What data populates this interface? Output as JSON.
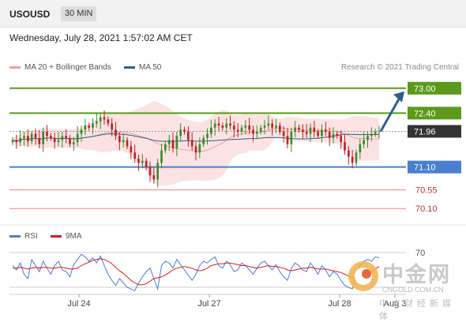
{
  "header": {
    "symbol": "USOUSD",
    "timeframe": "30 MIN"
  },
  "timestamp": "Wednesday, July 28, 2021 1:57:02 AM CET",
  "legend": [
    {
      "label": "MA 20 + Bollinger Bands",
      "color": "#f0a0a0"
    },
    {
      "label": "MA 50",
      "color": "#2b5f8f"
    }
  ],
  "copyright": "Research © 2021 Trading Central",
  "watermark": {
    "main": "中金网",
    "url": "CNGOLD.COM.CN",
    "sub": "中文财经新媒体"
  },
  "rsi_legend": [
    {
      "label": "RSI",
      "color": "#4a7fd0"
    },
    {
      "label": "9MA",
      "color": "#d42020"
    }
  ],
  "colors": {
    "resistance": "#5b9a1b",
    "support_main": "#4a7fd0",
    "support_minor": "#f08080",
    "current": "#333333",
    "candle_up": "#3a8a2a",
    "candle_down": "#c02020"
  },
  "chart_data": {
    "type": "candlestick",
    "symbol": "USOUSD",
    "timeframe": "30 MIN",
    "ylim": [
      69.8,
      73.3
    ],
    "x_ticks": [
      "Jul 24",
      "Jul 27",
      "Jul 28",
      "Aug 3"
    ],
    "levels": [
      {
        "value": 73.0,
        "label": "73.00",
        "kind": "resistance"
      },
      {
        "value": 72.4,
        "label": "72.40",
        "kind": "resistance"
      },
      {
        "value": 71.96,
        "label": "71.96",
        "kind": "current"
      },
      {
        "value": 71.1,
        "label": "71.10",
        "kind": "support_main"
      },
      {
        "value": 70.55,
        "label": "70.55",
        "kind": "support_minor"
      },
      {
        "value": 70.1,
        "label": "70.10",
        "kind": "support_minor"
      }
    ],
    "target_arrow": {
      "from": 71.96,
      "to": 73.0
    },
    "closes": [
      71.75,
      71.7,
      71.8,
      71.85,
      71.72,
      71.9,
      71.8,
      71.65,
      71.95,
      71.85,
      71.8,
      71.7,
      71.75,
      71.85,
      71.8,
      71.65,
      71.7,
      71.9,
      72.0,
      72.1,
      72.05,
      72.15,
      72.2,
      72.3,
      72.25,
      72.15,
      72.0,
      71.85,
      71.7,
      71.75,
      71.6,
      71.45,
      71.3,
      71.2,
      71.25,
      71.1,
      70.9,
      70.8,
      71.2,
      71.5,
      71.65,
      71.75,
      71.55,
      71.85,
      72.0,
      71.95,
      71.75,
      71.6,
      71.45,
      71.65,
      71.8,
      71.9,
      72.05,
      72.15,
      72.1,
      72.05,
      72.15,
      72.1,
      72.0,
      71.95,
      72.05,
      72.1,
      72.0,
      71.9,
      71.95,
      72.05,
      72.1,
      72.15,
      72.05,
      72.1,
      71.95,
      71.85,
      71.65,
      71.95,
      72.05,
      72.0,
      71.95,
      71.9,
      72.05,
      71.95,
      71.85,
      72.0,
      71.95,
      71.8,
      71.9,
      71.85,
      71.7,
      71.5,
      71.35,
      71.2,
      71.45,
      71.65,
      71.75,
      71.85,
      71.9,
      71.95,
      71.96
    ],
    "rsi": {
      "levels": [
        70,
        30
      ],
      "level_labels": [
        "70"
      ],
      "series": [
        {
          "name": "RSI",
          "values": [
            55,
            50,
            58,
            45,
            40,
            62,
            55,
            48,
            60,
            52,
            45,
            55,
            60,
            50,
            48,
            42,
            56,
            62,
            68,
            65,
            60,
            64,
            58,
            66,
            55,
            45,
            38,
            32,
            40,
            35,
            30,
            28,
            26,
            35,
            42,
            48,
            52,
            40,
            28,
            55,
            60,
            58,
            52,
            62,
            56,
            50,
            44,
            38,
            45,
            55,
            60,
            58,
            62,
            65,
            55,
            52,
            60,
            56,
            48,
            50,
            58,
            55,
            50,
            45,
            52,
            58,
            60,
            55,
            50,
            56,
            48,
            42,
            38,
            52,
            58,
            55,
            50,
            48,
            58,
            52,
            45,
            55,
            50,
            42,
            48,
            45,
            38,
            32,
            30,
            28,
            42,
            55,
            60,
            62,
            60,
            65,
            64
          ]
        },
        {
          "name": "9MA",
          "values": [
            52,
            52,
            53,
            52,
            51,
            52,
            53,
            52,
            53,
            53,
            52,
            52,
            53,
            53,
            52,
            51,
            51,
            52,
            55,
            57,
            59,
            61,
            62,
            63,
            62,
            60,
            57,
            53,
            49,
            46,
            42,
            38,
            35,
            33,
            33,
            34,
            37,
            40,
            41,
            42,
            44,
            47,
            50,
            52,
            53,
            54,
            53,
            52,
            50,
            49,
            50,
            52,
            55,
            56,
            57,
            57,
            58,
            58,
            57,
            56,
            55,
            55,
            54,
            53,
            52,
            53,
            54,
            55,
            54,
            54,
            53,
            52,
            50,
            49,
            50,
            51,
            52,
            52,
            53,
            52,
            51,
            51,
            51,
            50,
            49,
            48,
            47,
            45,
            43,
            41,
            40,
            41,
            43,
            45,
            48,
            51,
            54
          ]
        }
      ]
    }
  }
}
